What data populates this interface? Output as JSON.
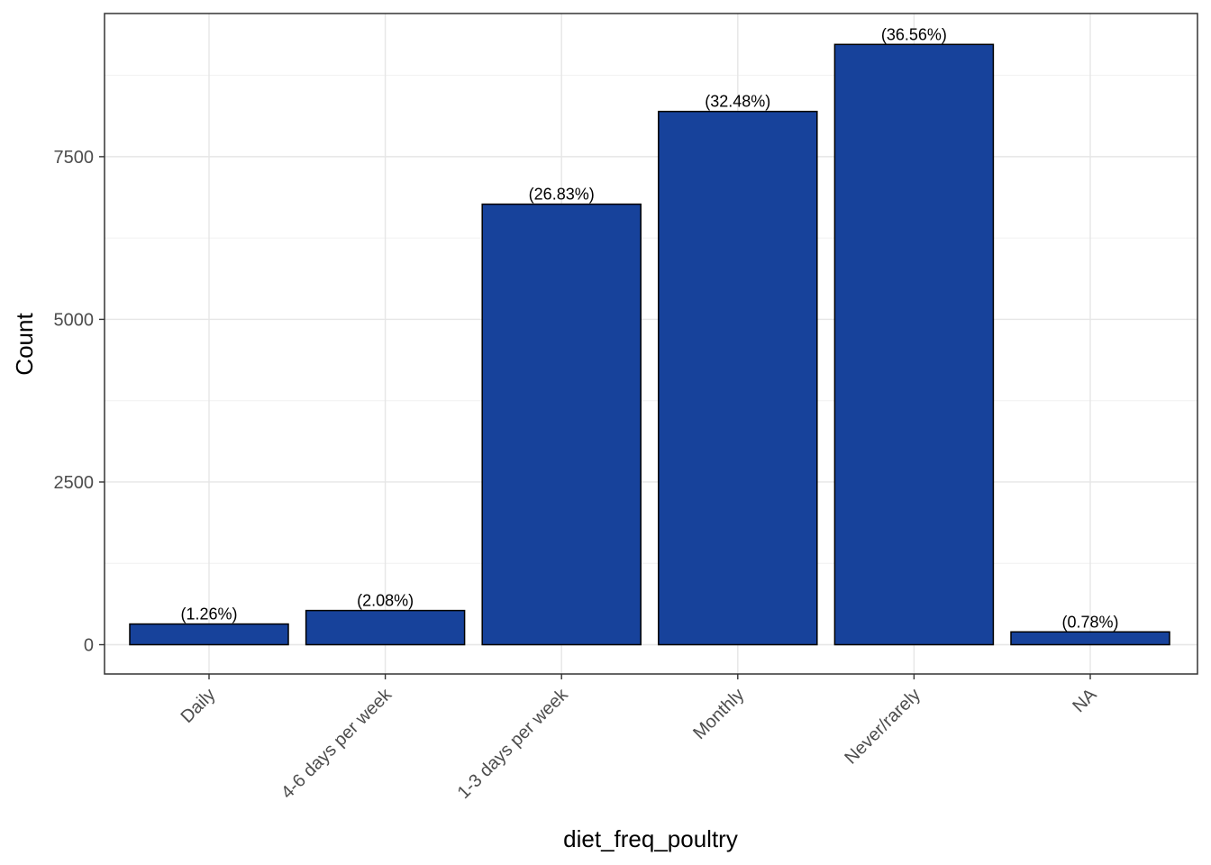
{
  "chart_data": {
    "type": "bar",
    "categories": [
      "Daily",
      "4-6 days per week",
      "1-3 days per week",
      "Monthly",
      "Never/rarely",
      "NA"
    ],
    "values": [
      318,
      525,
      6770,
      8195,
      9225,
      197
    ],
    "data_labels": [
      "(1.26%)",
      "(2.08%)",
      "(26.83%)",
      "(32.48%)",
      "(36.56%)",
      "(0.78%)"
    ],
    "xlabel": "diet_freq_poultry",
    "ylabel": "Count",
    "ylim": [
      -450,
      9700
    ],
    "yticks": [
      0,
      2500,
      5000,
      7500
    ],
    "ytick_labels": [
      "0",
      "2500",
      "5000",
      "7500"
    ],
    "grid": true,
    "legend": "none",
    "bar_color": "#17429b",
    "bar_edge_color": "#000000"
  }
}
